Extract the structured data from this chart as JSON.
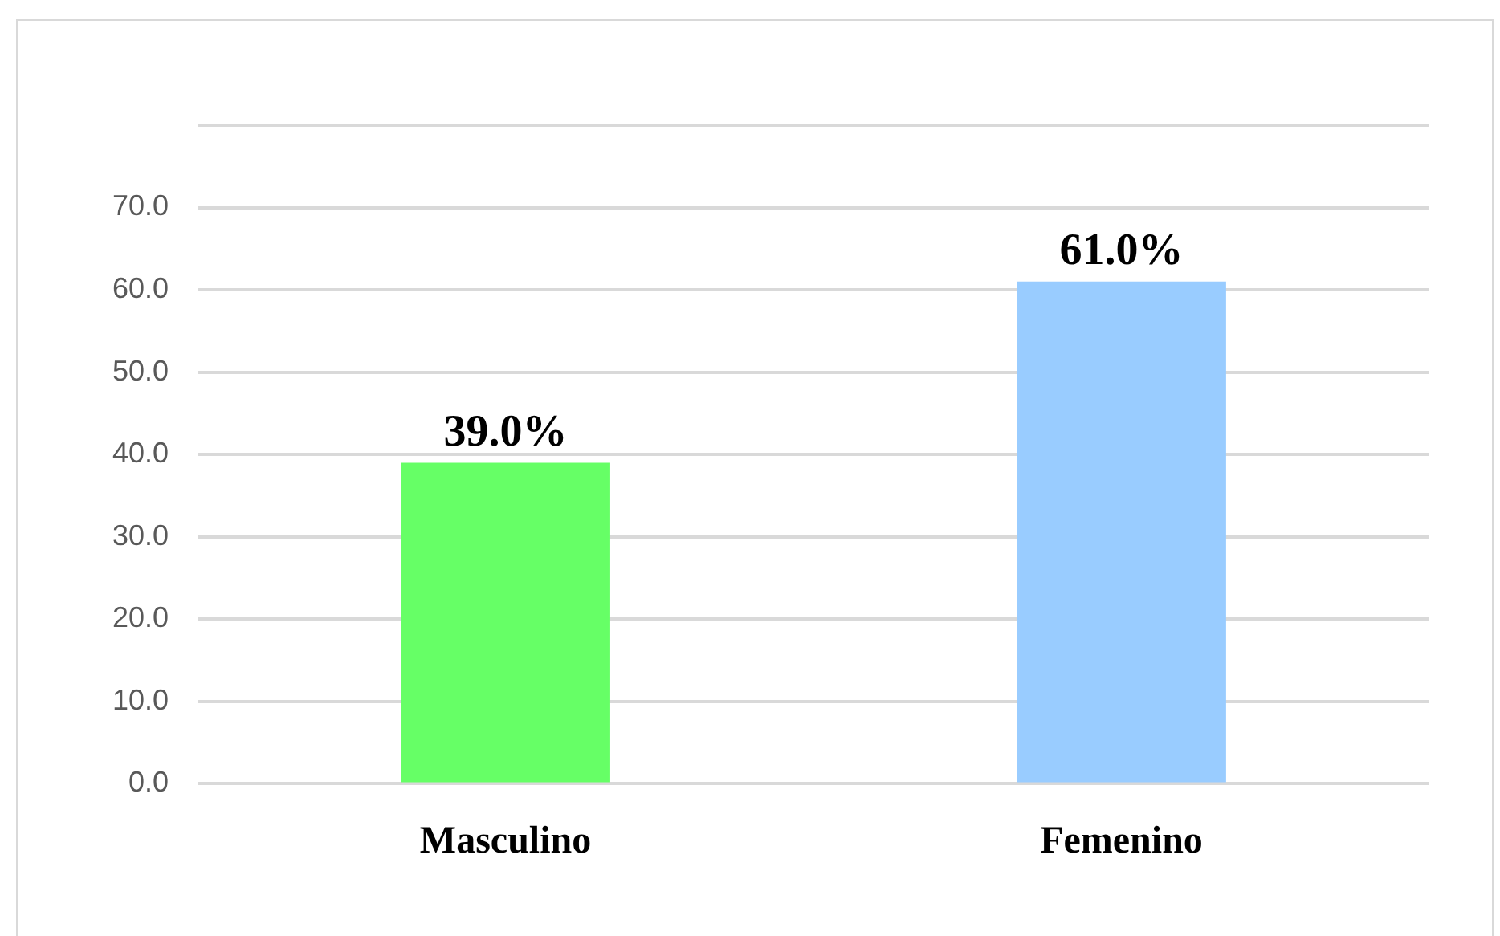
{
  "chart_data": {
    "type": "bar",
    "categories": [
      "Masculino",
      "Femenino"
    ],
    "values": [
      39.0,
      61.0
    ],
    "colors": [
      "#66ff66",
      "#99ccff"
    ],
    "value_labels": [
      "39.0%",
      "61.0%"
    ],
    "ylim": [
      0,
      80
    ],
    "yticks": [
      {
        "value": 0,
        "label": "0.0"
      },
      {
        "value": 10,
        "label": "10.0"
      },
      {
        "value": 20,
        "label": "20.0"
      },
      {
        "value": 30,
        "label": "30.0"
      },
      {
        "value": 40,
        "label": "40.0"
      },
      {
        "value": 50,
        "label": "50.0"
      },
      {
        "value": 60,
        "label": "60.0"
      },
      {
        "value": 70,
        "label": "70.0"
      },
      {
        "value": 80,
        "label": null
      }
    ],
    "grid": "y",
    "legend": false
  }
}
